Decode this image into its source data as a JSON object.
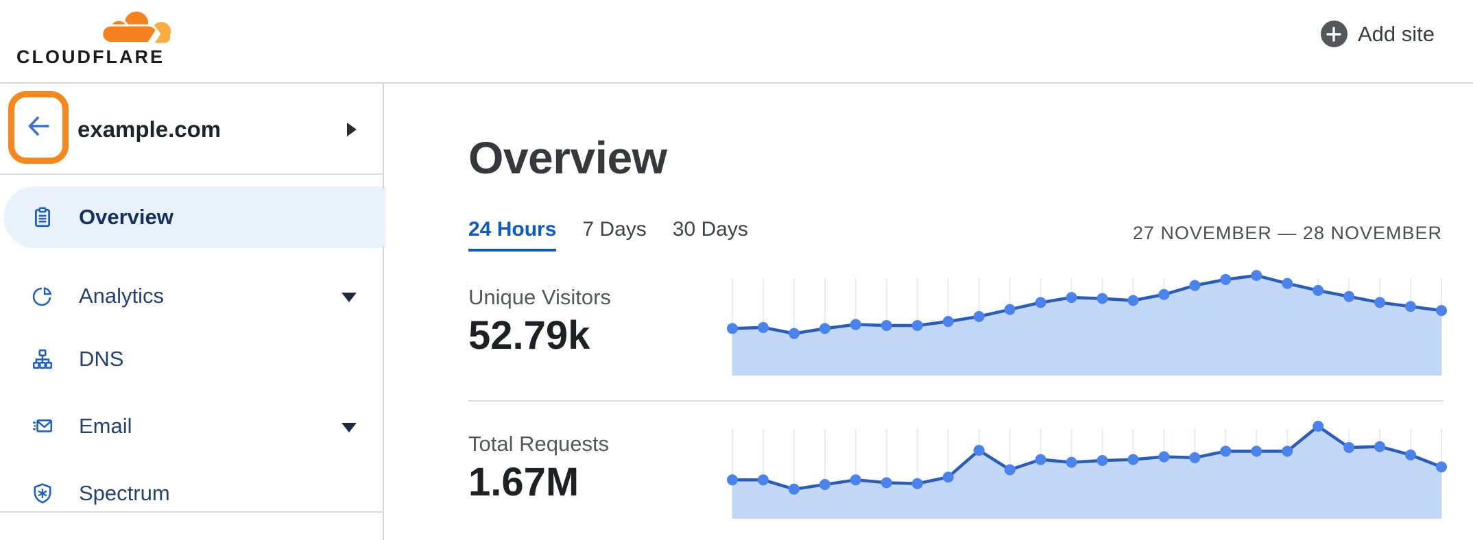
{
  "brand": {
    "wordmark": "CLOUDFLARE"
  },
  "header": {
    "add_site_label": "Add site",
    "add_site_icon": "plus-circle-icon"
  },
  "colors": {
    "brand_orange": "#F6821F",
    "brand_orange_light": "#FBAD41",
    "link_blue": "#0B5AC8",
    "nav_icon_blue": "#1E5FC2",
    "selected_pill_bg": "#E9F1FB",
    "highlight_border_orange": "#F6871D",
    "chart_line": "#2A5CB9",
    "chart_dot": "#4A83EC",
    "chart_fill": "#C3D8F6",
    "chart_grid": "#E7ECF2"
  },
  "sidebar": {
    "back_icon": "arrow-left-icon",
    "site_name": "example.com",
    "site_expand_icon": "caret-right-icon",
    "items": [
      {
        "label": "Overview",
        "icon": "clipboard-icon",
        "selected": true,
        "expandable": false
      },
      {
        "label": "Analytics",
        "icon": "pie-chart-icon",
        "selected": false,
        "expandable": true
      },
      {
        "label": "DNS",
        "icon": "sitemap-icon",
        "selected": false,
        "expandable": false
      },
      {
        "label": "Email",
        "icon": "email-send-icon",
        "selected": false,
        "expandable": true
      },
      {
        "label": "Spectrum",
        "icon": "shield-spark-icon",
        "selected": false,
        "expandable": false
      }
    ]
  },
  "main": {
    "title": "Overview",
    "tabs": [
      {
        "label": "24 Hours",
        "active": true
      },
      {
        "label": "7 Days",
        "active": false
      },
      {
        "label": "30 Days",
        "active": false
      }
    ],
    "date_range": "27 NOVEMBER — 28 NOVEMBER"
  },
  "chart_data": [
    {
      "type": "area",
      "metric": "Unique Visitors",
      "value": "52.79k",
      "points": 24,
      "x_unit": "hourly over 24 hours",
      "values_pct_of_max": [
        47,
        48,
        42,
        47,
        51,
        50,
        50,
        54,
        59,
        66,
        73,
        78,
        77,
        75,
        81,
        90,
        96,
        100,
        92,
        85,
        79,
        73,
        69,
        65
      ],
      "grid": true,
      "legend": "none"
    },
    {
      "type": "area",
      "metric": "Total Requests",
      "value": "1.67M",
      "points": 24,
      "x_unit": "hourly over 24 hours",
      "values_pct_of_max": [
        42,
        42,
        32,
        37,
        42,
        39,
        38,
        45,
        74,
        53,
        64,
        61,
        63,
        64,
        67,
        66,
        73,
        73,
        73,
        100,
        77,
        78,
        69,
        56
      ],
      "grid": true,
      "legend": "none"
    }
  ]
}
